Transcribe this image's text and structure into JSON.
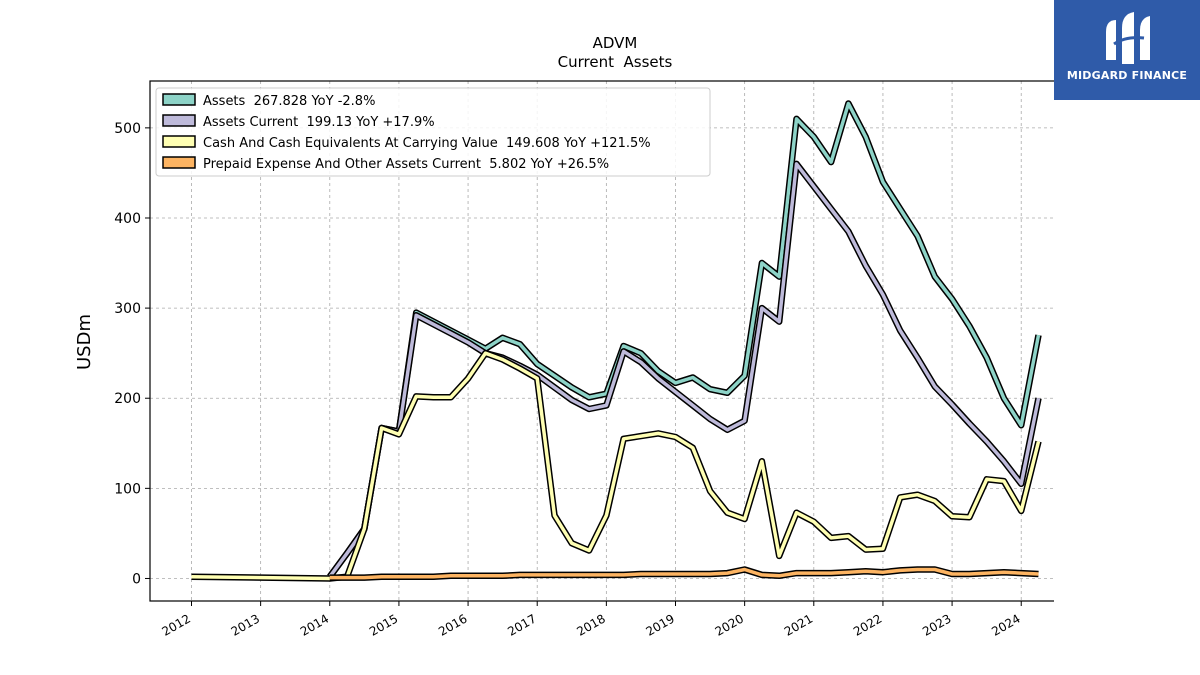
{
  "brand": {
    "name": "MIDGARD FINANCE",
    "logo_icon": "midgard-logo-icon",
    "color": "#2f5ba9"
  },
  "chart_data": {
    "type": "line",
    "title": "ADVM",
    "subtitle": "Current  Assets",
    "ylabel": "USDm",
    "xlabel": "",
    "xlim": [
      2011.4,
      2024.85
    ],
    "ylim": [
      -25,
      552
    ],
    "grid": true,
    "legend_position": "top-left",
    "x_ticks": [
      "2012",
      "2013",
      "2014",
      "2015",
      "2016",
      "2017",
      "2018",
      "2019",
      "2020",
      "2021",
      "2022",
      "2023",
      "2024"
    ],
    "y_ticks": [
      0,
      100,
      200,
      300,
      400,
      500
    ],
    "series": [
      {
        "name": "Assets",
        "legend": "Assets  267.828 YoY -2.8%",
        "color": "#8dd3c7",
        "x": [
          2014.0,
          2014.25,
          2014.5,
          2014.75,
          2015.0,
          2015.25,
          2015.5,
          2015.75,
          2016.0,
          2016.25,
          2016.5,
          2016.75,
          2017.0,
          2017.25,
          2017.5,
          2017.75,
          2018.0,
          2018.25,
          2018.5,
          2018.75,
          2019.0,
          2019.25,
          2019.5,
          2019.75,
          2020.0,
          2020.25,
          2020.5,
          2020.75,
          2021.0,
          2021.25,
          2021.5,
          2021.75,
          2022.0,
          2022.25,
          2022.5,
          2022.75,
          2023.0,
          2023.25,
          2023.5,
          2023.75,
          2024.0,
          2024.25
        ],
        "values": [
          2,
          28,
          55,
          167,
          163,
          295,
          285,
          275,
          265,
          255,
          267,
          260,
          238,
          225,
          212,
          201,
          205,
          258,
          250,
          230,
          217,
          223,
          210,
          206,
          225,
          350,
          335,
          510,
          490,
          462,
          527,
          490,
          440,
          410,
          380,
          335,
          310,
          280,
          245,
          200,
          170,
          270
        ]
      },
      {
        "name": "Assets Current",
        "legend": "Assets Current  199.13 YoY +17.9%",
        "color": "#bebada",
        "x": [
          2014.0,
          2014.25,
          2014.5,
          2014.75,
          2015.0,
          2015.25,
          2015.5,
          2015.75,
          2016.0,
          2016.25,
          2016.5,
          2016.75,
          2017.0,
          2017.25,
          2017.5,
          2017.75,
          2018.0,
          2018.25,
          2018.5,
          2018.75,
          2019.0,
          2019.25,
          2019.5,
          2019.75,
          2020.0,
          2020.25,
          2020.5,
          2020.75,
          2021.0,
          2021.25,
          2021.5,
          2021.75,
          2022.0,
          2022.25,
          2022.5,
          2022.75,
          2023.0,
          2023.25,
          2023.5,
          2023.75,
          2024.0,
          2024.25
        ],
        "values": [
          2,
          28,
          55,
          167,
          163,
          292,
          282,
          272,
          262,
          250,
          245,
          236,
          226,
          212,
          198,
          188,
          192,
          252,
          240,
          222,
          207,
          192,
          177,
          165,
          175,
          300,
          285,
          460,
          435,
          410,
          385,
          347,
          315,
          275,
          245,
          213,
          193,
          172,
          152,
          130,
          105,
          200
        ]
      },
      {
        "name": "Cash And Cash Equivalents At Carrying Value",
        "legend": "Cash And Cash Equivalents At Carrying Value  149.608 YoY +121.5%",
        "color": "#ffffb3",
        "x": [
          2012.0,
          2014.0,
          2014.25,
          2014.5,
          2014.75,
          2015.0,
          2015.25,
          2015.5,
          2015.75,
          2016.0,
          2016.25,
          2016.5,
          2016.75,
          2017.0,
          2017.25,
          2017.5,
          2017.75,
          2018.0,
          2018.25,
          2018.5,
          2018.75,
          2019.0,
          2019.25,
          2019.5,
          2019.75,
          2020.0,
          2020.25,
          2020.5,
          2020.75,
          2021.0,
          2021.25,
          2021.5,
          2021.75,
          2022.0,
          2022.25,
          2022.5,
          2022.75,
          2023.0,
          2023.25,
          2023.5,
          2023.75,
          2024.0,
          2024.25
        ],
        "values": [
          2,
          0,
          2,
          55,
          167,
          160,
          202,
          201,
          201,
          222,
          250,
          243,
          233,
          222,
          70,
          39,
          31,
          70,
          155,
          158,
          161,
          157,
          145,
          97,
          73,
          66,
          130,
          25,
          73,
          63,
          45,
          47,
          32,
          33,
          90,
          93,
          86,
          69,
          68,
          110,
          108,
          75,
          152
        ]
      },
      {
        "name": "Prepaid Expense And Other Assets Current",
        "legend": "Prepaid Expense And Other Assets Current  5.802 YoY +26.5%",
        "color": "#fdb462",
        "x": [
          2014.0,
          2014.25,
          2014.5,
          2014.75,
          2015.0,
          2015.25,
          2015.5,
          2015.75,
          2016.0,
          2016.25,
          2016.5,
          2016.75,
          2017.0,
          2017.25,
          2017.5,
          2017.75,
          2018.0,
          2018.25,
          2018.5,
          2018.75,
          2019.0,
          2019.25,
          2019.5,
          2019.75,
          2020.0,
          2020.25,
          2020.5,
          2020.75,
          2021.0,
          2021.25,
          2021.5,
          2021.75,
          2022.0,
          2022.25,
          2022.5,
          2022.75,
          2023.0,
          2023.25,
          2023.5,
          2023.75,
          2024.0,
          2024.25
        ],
        "values": [
          1,
          1,
          1,
          2,
          2,
          2,
          2,
          3,
          3,
          3,
          3,
          4,
          4,
          4,
          4,
          4,
          4,
          4,
          5,
          5,
          5,
          5,
          5,
          6,
          10,
          4,
          3,
          6,
          6,
          6,
          7,
          8,
          7,
          9,
          10,
          10,
          5,
          5,
          6,
          7,
          6,
          5
        ]
      }
    ]
  }
}
